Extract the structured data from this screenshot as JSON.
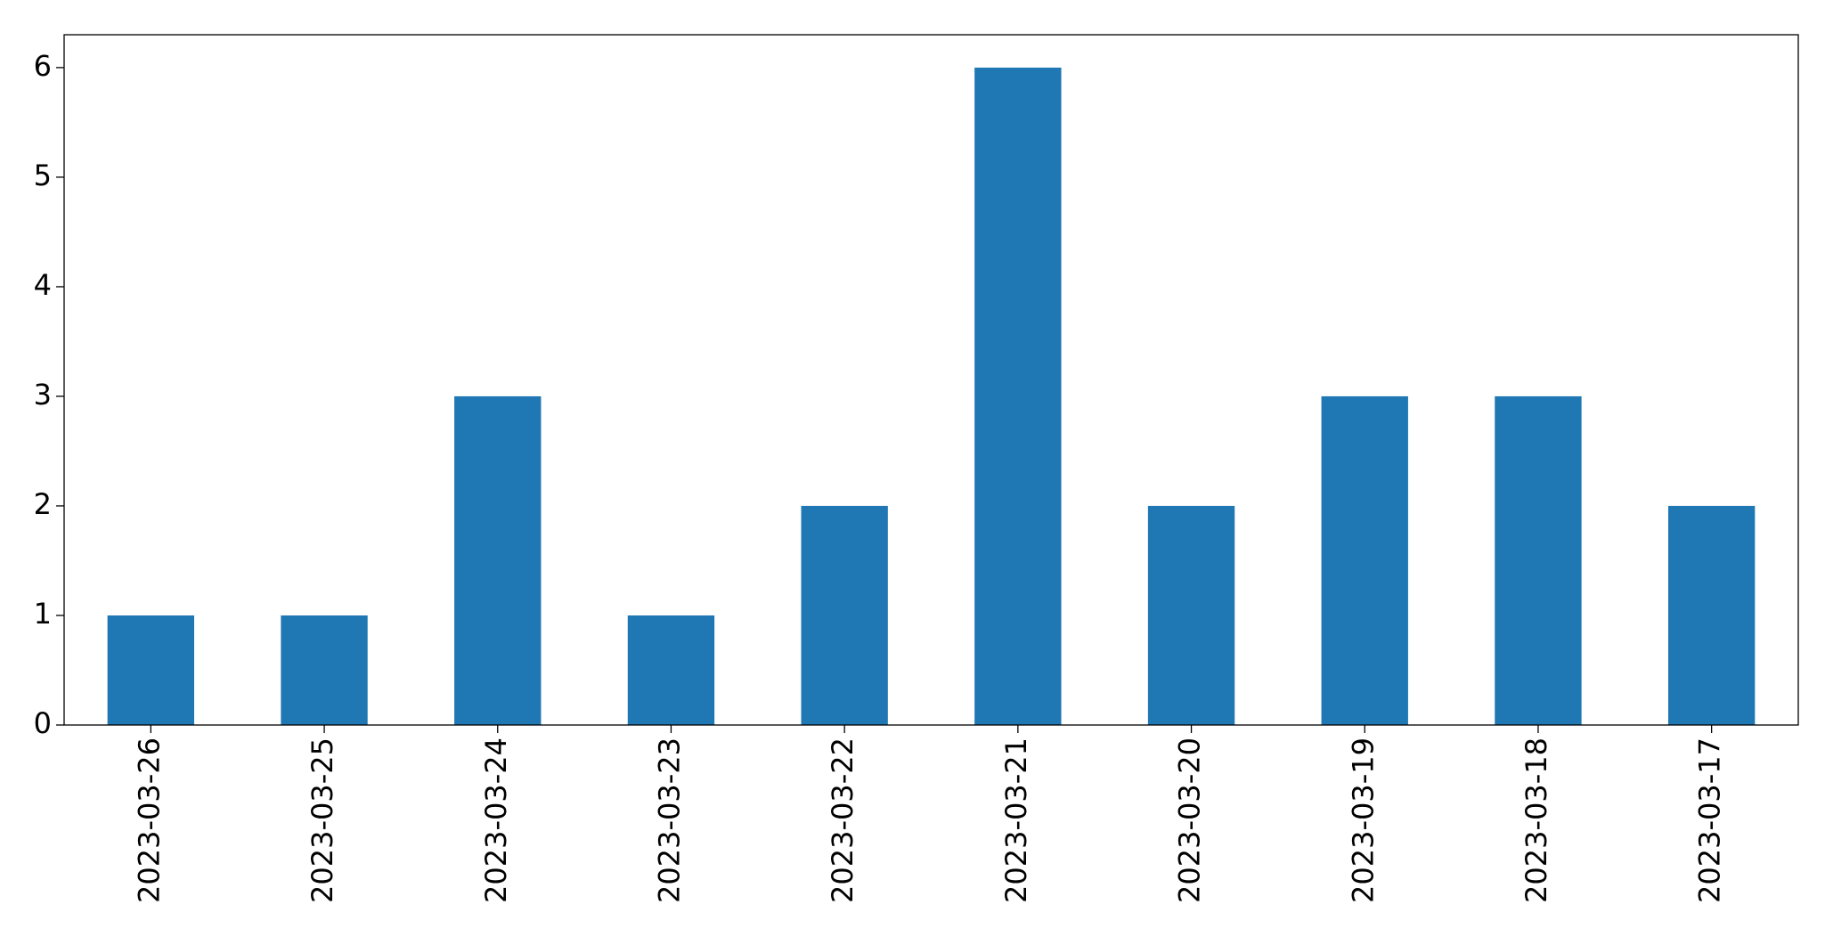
{
  "chart_data": {
    "type": "bar",
    "categories": [
      "2023-03-26",
      "2023-03-25",
      "2023-03-24",
      "2023-03-23",
      "2023-03-22",
      "2023-03-21",
      "2023-03-20",
      "2023-03-19",
      "2023-03-18",
      "2023-03-17"
    ],
    "values": [
      1,
      1,
      3,
      1,
      2,
      6,
      2,
      3,
      3,
      2
    ],
    "color": "#1f77b4",
    "ylim": [
      0,
      6.3
    ],
    "yticks": [
      0,
      1,
      2,
      3,
      4,
      5,
      6
    ],
    "grid": false
  }
}
